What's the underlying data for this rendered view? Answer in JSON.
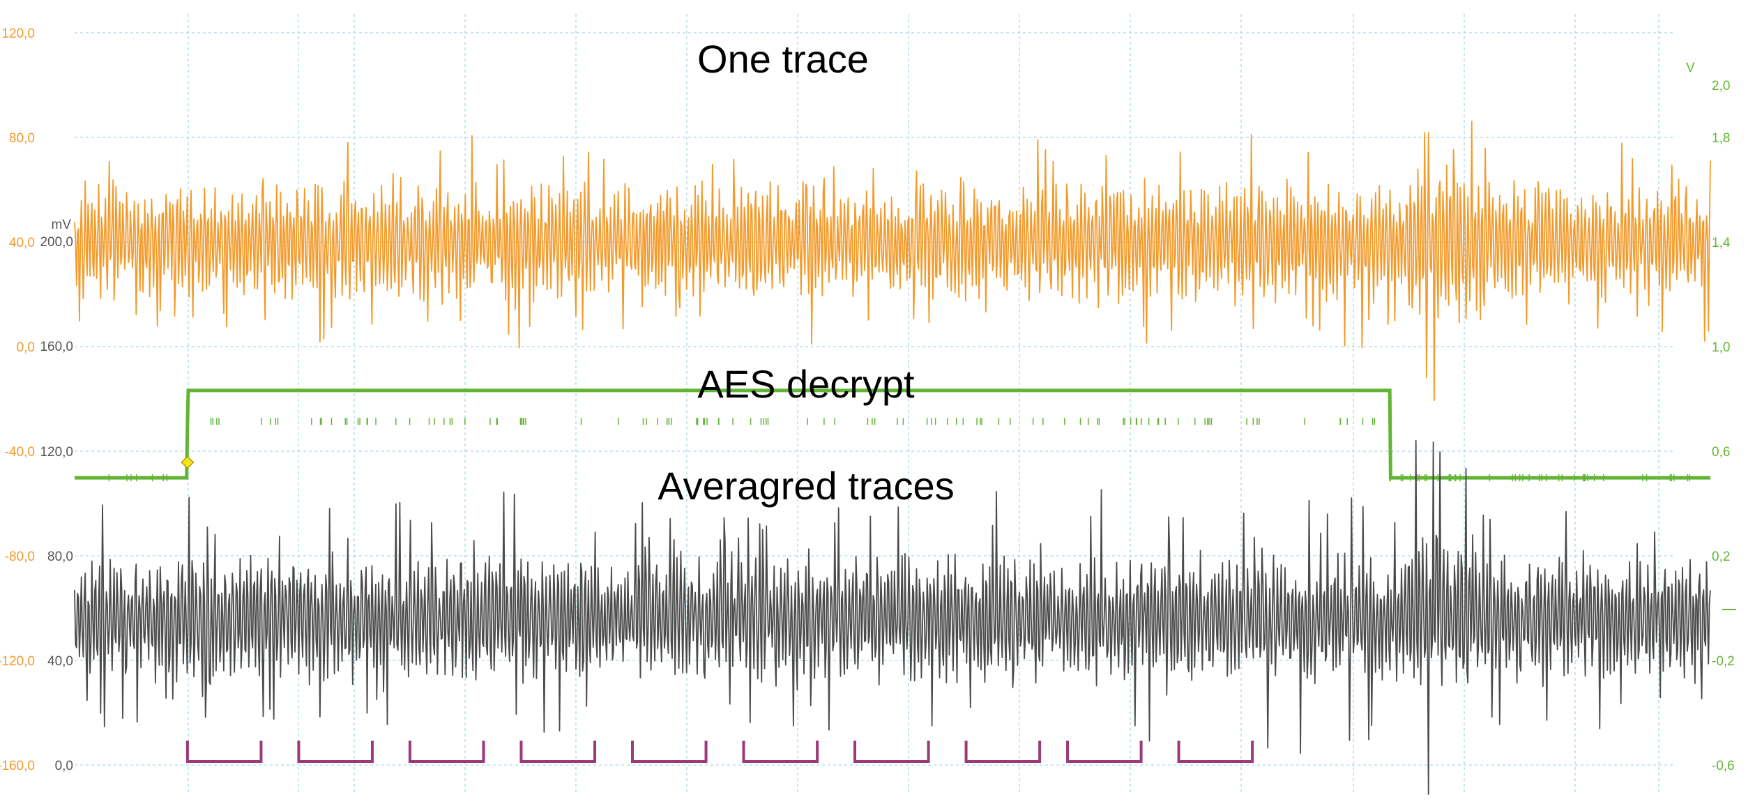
{
  "chart_data": {
    "type": "line",
    "x_range": [
      0,
      1000
    ],
    "grid": true,
    "colors": {
      "orange": "#f39a2b",
      "green": "#62b534",
      "gray": "#4a4a4a",
      "purple": "#9c3a78",
      "marker": "#f4e51b"
    },
    "annotations": {
      "one_trace": "One trace",
      "aes_decrypt": "AES decrypt",
      "averaged": "Averagred traces"
    },
    "axis_orange": {
      "ticks": [
        "120,0",
        "80,0",
        "40,0",
        "0,0",
        "-40,0",
        "-80,0",
        "-120,0",
        "-160,0"
      ]
    },
    "axis_gray": {
      "unit": "mV",
      "ticks": [
        "200,0",
        "160,0",
        "120,0",
        "80,0",
        "40,0",
        "0,0"
      ]
    },
    "axis_green": {
      "unit": "V",
      "ticks": [
        "2,0",
        "1,8",
        "1,4",
        "1,0",
        "0,6",
        "0,2",
        "-0,2",
        "-0,6"
      ]
    },
    "series": [
      {
        "key": "one_trace",
        "kind": "noise",
        "axis_range": [
          -160,
          120
        ],
        "x_range": [
          0,
          1000
        ],
        "center": 40,
        "amplitude": 22,
        "spike_amplitude": 42,
        "color": "orange"
      },
      {
        "key": "aes_signal",
        "kind": "step",
        "axis_range": [
          -0.6,
          2.0
        ],
        "points": [
          [
            0,
            0.42
          ],
          [
            68.5,
            0.42
          ],
          [
            69,
            0.62
          ],
          [
            69.5,
            0.73
          ],
          [
            804,
            0.73
          ],
          [
            804.5,
            0.42
          ],
          [
            1000,
            0.42
          ]
        ],
        "color": "green"
      },
      {
        "key": "averaged_traces",
        "kind": "noise",
        "axis_range": [
          0,
          200
        ],
        "x_range": [
          0,
          1000
        ],
        "center": 40,
        "amplitude": 17,
        "spike_amplitude": 38,
        "color": "gray"
      }
    ],
    "rounds": [
      [
        69,
        114
      ],
      [
        137,
        182
      ],
      [
        205,
        250
      ],
      [
        273,
        318
      ],
      [
        341,
        386
      ],
      [
        409,
        454
      ],
      [
        477,
        522
      ],
      [
        545,
        590
      ],
      [
        607,
        652
      ],
      [
        675,
        720
      ]
    ],
    "trigger_x": 69
  }
}
